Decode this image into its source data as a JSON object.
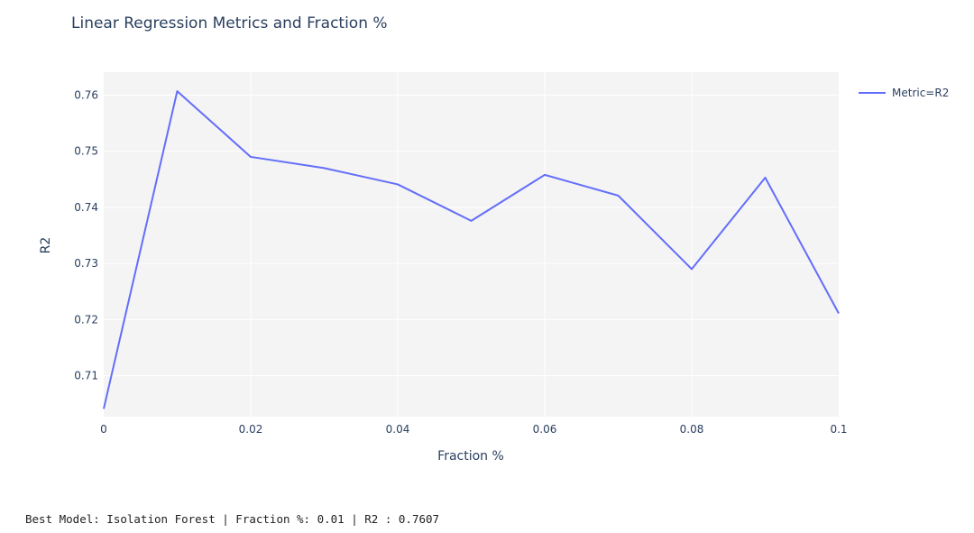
{
  "chart_data": {
    "type": "line",
    "title": "Linear Regression Metrics and Fraction %",
    "xlabel": "Fraction %",
    "ylabel": "R2",
    "x": [
      0,
      0.01,
      0.02,
      0.03,
      0.04,
      0.05,
      0.06,
      0.07,
      0.08,
      0.09,
      0.1
    ],
    "series": [
      {
        "name": "Metric=R2",
        "color": "#636efa",
        "values": [
          0.7041,
          0.7607,
          0.749,
          0.747,
          0.7441,
          0.7376,
          0.7458,
          0.7421,
          0.729,
          0.7453,
          0.7211
        ]
      }
    ],
    "xlim": [
      0,
      0.1
    ],
    "ylim": [
      0.7027,
      0.7641
    ],
    "xticks": [
      0,
      0.02,
      0.04,
      0.06,
      0.08,
      0.1
    ],
    "xtick_labels": [
      "0",
      "0.02",
      "0.04",
      "0.06",
      "0.08",
      "0.1"
    ],
    "yticks": [
      0.71,
      0.72,
      0.73,
      0.74,
      0.75,
      0.76
    ],
    "ytick_labels": [
      "0.71",
      "0.72",
      "0.73",
      "0.74",
      "0.75",
      "0.76"
    ],
    "grid": true,
    "legend_position": "top-right",
    "plot_bg": "#f4f4f4"
  },
  "output": {
    "text": "Best Model: Isolation Forest | Fraction %: 0.01 | R2 : 0.7607"
  }
}
